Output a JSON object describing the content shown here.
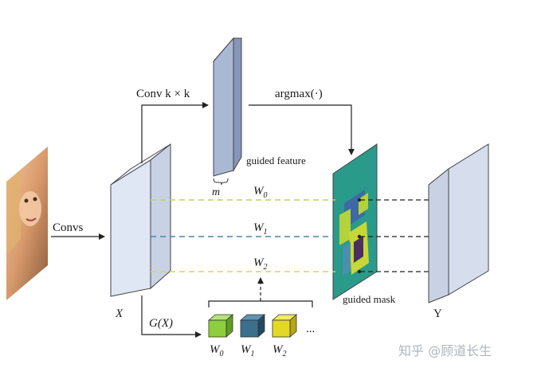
{
  "labels": {
    "conv_k": "Conv k × k",
    "argmax": "argmax(·)",
    "guided_feature": "guided feature",
    "m": "m",
    "convs": "Convs",
    "x": "X",
    "gx": "G(X)",
    "guided_mask": "guided mask",
    "y": "Y",
    "w0": "W",
    "w1": "W",
    "w2": "W",
    "w0_sub": "0",
    "w1_sub": "1",
    "w2_sub": "2",
    "ellipsis": "...",
    "watermark": "知乎 @顾道长生"
  },
  "kernels": [
    {
      "label": "W",
      "sub": "0",
      "color": "#8ccf3c"
    },
    {
      "label": "W",
      "sub": "1",
      "color": "#3a6f8e"
    },
    {
      "label": "W",
      "sub": "2",
      "color": "#e4d827"
    }
  ],
  "colors": {
    "line_w0": "#b5d65a",
    "line_w1": "#4a86a6",
    "line_w2": "#d6d84a",
    "feature_map": "#a9b8d4",
    "block_face": "#dde5f3",
    "block_side": "#c3cbe0"
  }
}
